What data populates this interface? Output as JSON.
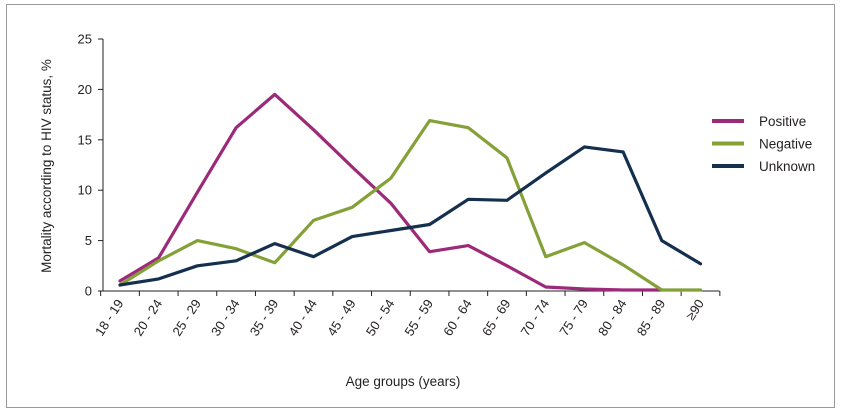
{
  "chart_data": {
    "type": "line",
    "xlabel": "Age groups (years)",
    "ylabel": "Mortality according to HIV status, %",
    "ylim": [
      0,
      25
    ],
    "yticks": [
      0,
      5,
      10,
      15,
      20,
      25
    ],
    "grid": false,
    "legend_position": "right",
    "categories": [
      "18 - 19",
      "20 - 24",
      "25 - 29",
      "30 - 34",
      "35 - 39",
      "40 - 44",
      "45 - 49",
      "50 - 54",
      "55 - 59",
      "60 - 64",
      "65 - 69",
      "70 - 74",
      "75 - 79",
      "80 - 84",
      "85 - 89",
      "≥90"
    ],
    "series": [
      {
        "name": "Positive",
        "color": "#9c2a79",
        "values": [
          1.0,
          3.3,
          9.8,
          16.2,
          19.5,
          16.0,
          12.3,
          8.7,
          3.9,
          4.5,
          2.5,
          0.4,
          0.2,
          0.1,
          0.1,
          null
        ]
      },
      {
        "name": "Negative",
        "color": "#84a138",
        "values": [
          0.6,
          3.0,
          5.0,
          4.2,
          2.8,
          7.0,
          8.3,
          11.2,
          16.9,
          16.2,
          13.2,
          3.4,
          4.8,
          2.6,
          0.1,
          0.1
        ]
      },
      {
        "name": "Unknown",
        "color": "#14304e",
        "values": [
          0.6,
          1.2,
          2.5,
          3.0,
          4.7,
          3.4,
          5.4,
          6.0,
          6.6,
          9.1,
          9.0,
          11.7,
          14.3,
          13.8,
          5.0,
          2.7
        ]
      }
    ]
  }
}
